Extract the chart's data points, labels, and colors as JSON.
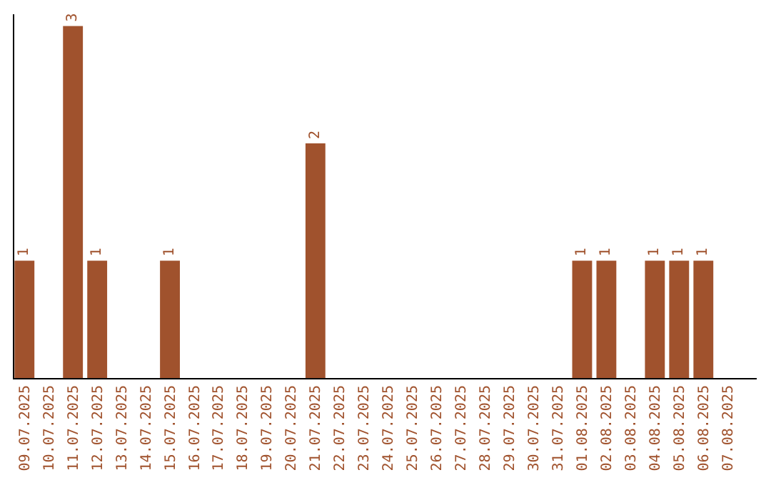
{
  "chart_data": {
    "type": "bar",
    "categories": [
      "09.07.2025",
      "10.07.2025",
      "11.07.2025",
      "12.07.2025",
      "13.07.2025",
      "14.07.2025",
      "15.07.2025",
      "16.07.2025",
      "17.07.2025",
      "18.07.2025",
      "19.07.2025",
      "20.07.2025",
      "21.07.2025",
      "22.07.2025",
      "23.07.2025",
      "24.07.2025",
      "25.07.2025",
      "26.07.2025",
      "27.07.2025",
      "28.07.2025",
      "29.07.2025",
      "30.07.2025",
      "31.07.2025",
      "01.08.2025",
      "02.08.2025",
      "03.08.2025",
      "04.08.2025",
      "05.08.2025",
      "06.08.2025",
      "07.08.2025"
    ],
    "values": [
      1,
      0,
      3,
      1,
      0,
      0,
      1,
      0,
      0,
      0,
      0,
      0,
      2,
      0,
      0,
      0,
      0,
      0,
      0,
      0,
      0,
      0,
      0,
      1,
      1,
      0,
      1,
      1,
      1,
      0
    ],
    "value_labels": [
      "1",
      null,
      "3",
      "1",
      null,
      null,
      "1",
      null,
      null,
      null,
      null,
      null,
      "2",
      null,
      null,
      null,
      null,
      null,
      null,
      null,
      null,
      null,
      null,
      "1",
      "1",
      null,
      "1",
      "1",
      "1",
      null
    ],
    "color": "#a0522d",
    "ylim": [
      0,
      3.1
    ],
    "tick_labels": "x",
    "legend": false
  }
}
